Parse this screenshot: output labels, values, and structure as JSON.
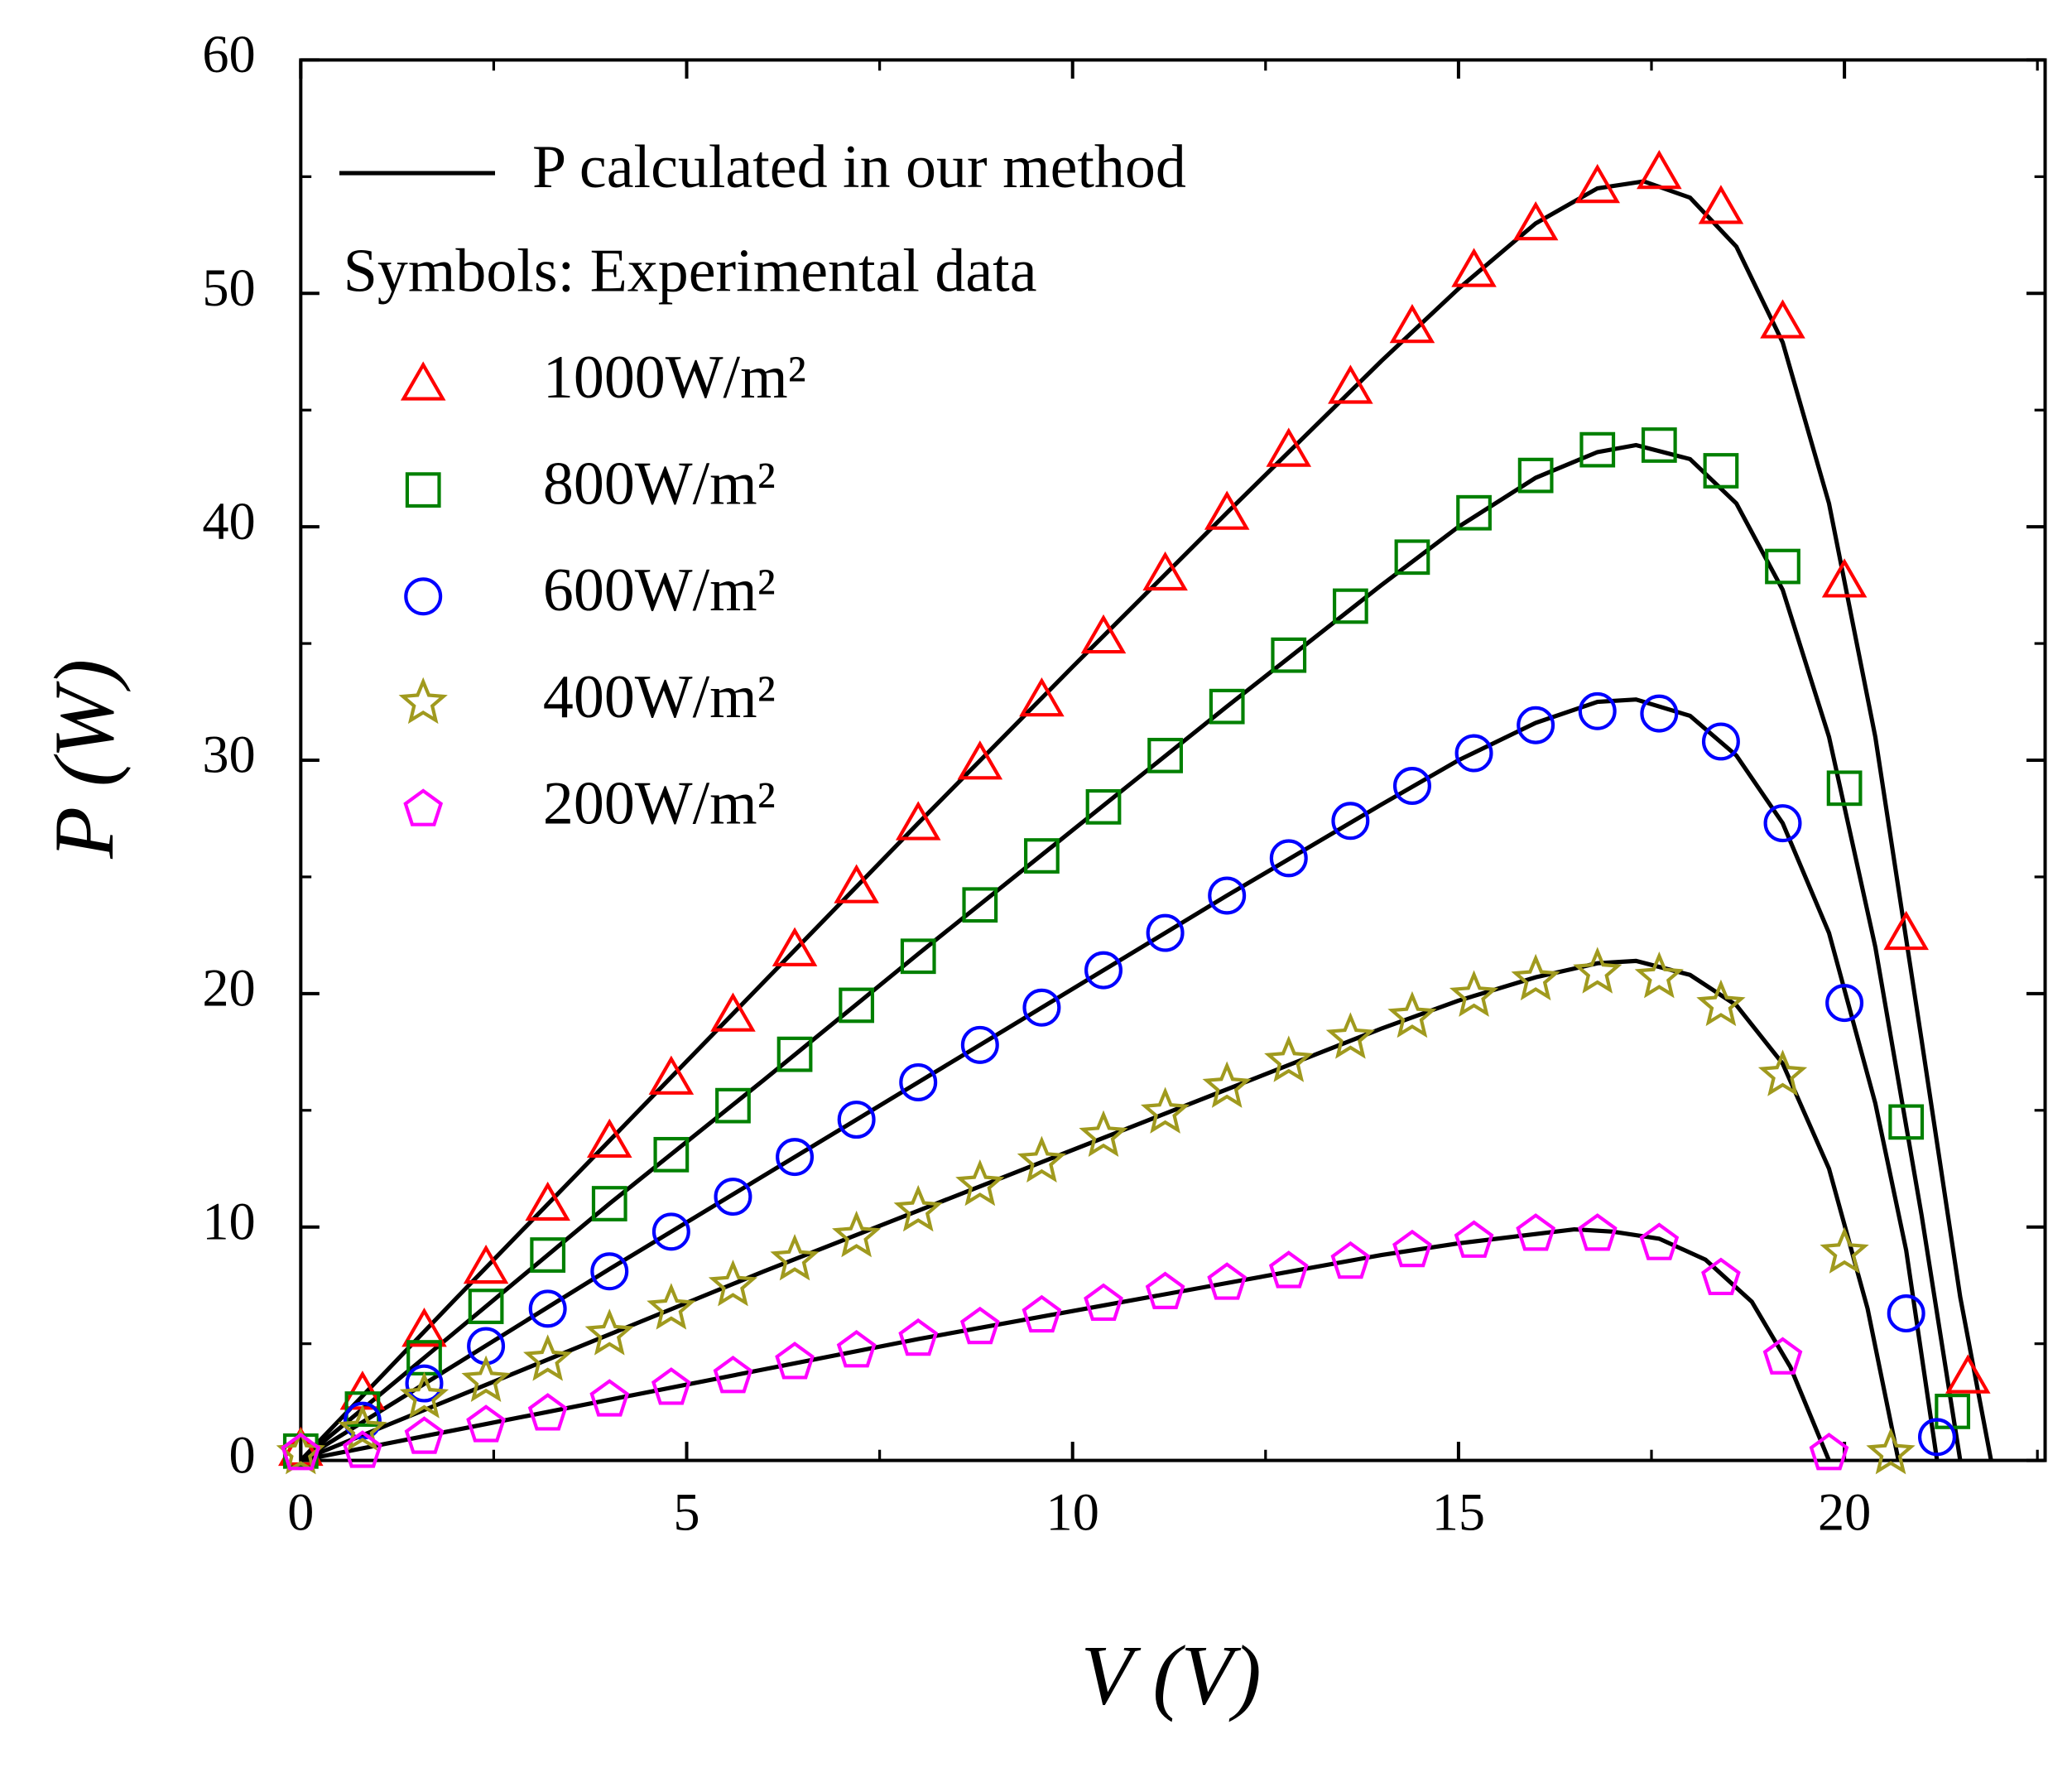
{
  "chart_data": {
    "type": "scatter",
    "x_label": "V (V)",
    "y_label": "P (W)",
    "xlim": [
      0,
      22.6
    ],
    "ylim": [
      0,
      60
    ],
    "xticks": [
      0,
      5,
      10,
      15,
      20
    ],
    "yticks": [
      0,
      10,
      20,
      30,
      40,
      50,
      60
    ],
    "xminorticks": [
      2.5,
      7.5,
      12.5,
      17.5,
      22.5
    ],
    "yminorticks": [
      5,
      15,
      25,
      35,
      45,
      55
    ],
    "legend_note": "Symbols: Experimental data",
    "fit": {
      "name": "P calculated in our method",
      "color": "#000000",
      "curves": [
        {
          "x": [
            0,
            2,
            4,
            6,
            8,
            10,
            12,
            14,
            15,
            16,
            16.8,
            17.4,
            18,
            18.6,
            19.2,
            19.8,
            20.4,
            21,
            21.5,
            21.9
          ],
          "values": [
            0,
            6.9,
            13.7,
            20.5,
            27.3,
            34.0,
            40.6,
            47.1,
            50.2,
            53.0,
            54.5,
            54.8,
            54.1,
            52.0,
            47.9,
            41.0,
            31.0,
            18.0,
            7.0,
            0
          ]
        },
        {
          "x": [
            0,
            2,
            4,
            6,
            8,
            10,
            12,
            14,
            15,
            16,
            16.8,
            17.3,
            18,
            18.6,
            19.2,
            19.8,
            20.4,
            21,
            21.5
          ],
          "values": [
            0,
            5.5,
            11.0,
            16.3,
            21.7,
            27.0,
            32.3,
            37.5,
            40.0,
            42.1,
            43.2,
            43.5,
            42.9,
            41.0,
            37.3,
            31.0,
            22.0,
            10.5,
            0
          ]
        },
        {
          "x": [
            0,
            2,
            4,
            6,
            8,
            10,
            12,
            14,
            15,
            16,
            16.8,
            17.3,
            18,
            18.6,
            19.2,
            19.8,
            20.4,
            20.8,
            21.2
          ],
          "values": [
            0,
            4.1,
            8.2,
            12.2,
            16.2,
            20.2,
            24.2,
            28.1,
            30.0,
            31.6,
            32.5,
            32.6,
            31.9,
            30.2,
            27.3,
            22.6,
            15.3,
            9.0,
            0
          ]
        },
        {
          "x": [
            0,
            2,
            4,
            6,
            8,
            10,
            12,
            14,
            15,
            16,
            16.8,
            17.3,
            18,
            18.6,
            19.2,
            19.8,
            20.3,
            20.7
          ],
          "values": [
            0,
            2.7,
            5.4,
            8.1,
            10.7,
            13.3,
            15.9,
            18.5,
            19.7,
            20.7,
            21.3,
            21.4,
            20.8,
            19.5,
            17.0,
            12.5,
            6.5,
            0
          ]
        },
        {
          "x": [
            0,
            2,
            4,
            6,
            8,
            10,
            12,
            14,
            15,
            16,
            16.5,
            17,
            17.6,
            18.2,
            18.8,
            19.3,
            19.8
          ],
          "values": [
            0,
            1.3,
            2.6,
            3.9,
            5.2,
            6.4,
            7.6,
            8.8,
            9.3,
            9.7,
            9.9,
            9.8,
            9.5,
            8.6,
            6.8,
            4.0,
            0
          ]
        }
      ]
    },
    "series": [
      {
        "name": "1000W/m²",
        "color": "#ff0000",
        "marker": "triangle",
        "x": [
          0,
          0.8,
          1.6,
          2.4,
          3.2,
          4.0,
          4.8,
          5.6,
          6.4,
          7.2,
          8.0,
          8.8,
          9.6,
          10.4,
          11.2,
          12.0,
          12.8,
          13.6,
          14.4,
          15.2,
          16.0,
          16.8,
          17.6,
          18.4,
          19.2,
          20.0,
          20.8,
          21.6
        ],
        "values": [
          0.5,
          2.9,
          5.6,
          8.3,
          11.0,
          13.7,
          16.4,
          19.1,
          21.9,
          24.6,
          27.3,
          29.9,
          32.6,
          35.3,
          38.0,
          40.6,
          43.3,
          46.0,
          48.6,
          51.0,
          53.0,
          54.6,
          55.2,
          53.7,
          48.8,
          37.7,
          22.6,
          3.6
        ]
      },
      {
        "name": "800W/m²",
        "color": "#008000",
        "marker": "square",
        "x": [
          0,
          0.8,
          1.6,
          2.4,
          3.2,
          4.0,
          4.8,
          5.6,
          6.4,
          7.2,
          8.0,
          8.8,
          9.6,
          10.4,
          11.2,
          12.0,
          12.8,
          13.6,
          14.4,
          15.2,
          16.0,
          16.8,
          17.6,
          18.4,
          19.2,
          20.0,
          20.8,
          21.4
        ],
        "values": [
          0.4,
          2.2,
          4.4,
          6.6,
          8.8,
          11.0,
          13.1,
          15.2,
          17.4,
          19.5,
          21.6,
          23.8,
          25.9,
          28.0,
          30.2,
          32.3,
          34.5,
          36.6,
          38.7,
          40.6,
          42.2,
          43.3,
          43.5,
          42.4,
          38.3,
          28.8,
          14.5,
          2.1
        ]
      },
      {
        "name": "600W/m²",
        "color": "#0000ff",
        "marker": "circle",
        "x": [
          0.8,
          1.6,
          2.4,
          3.2,
          4.0,
          4.8,
          5.6,
          6.4,
          7.2,
          8.0,
          8.8,
          9.6,
          10.4,
          11.2,
          12.0,
          12.8,
          13.6,
          14.4,
          15.2,
          16.0,
          16.8,
          17.6,
          18.4,
          19.2,
          20.0,
          20.8,
          21.2
        ],
        "values": [
          1.7,
          3.3,
          4.9,
          6.5,
          8.1,
          9.8,
          11.3,
          13.0,
          14.6,
          16.2,
          17.8,
          19.4,
          21.0,
          22.6,
          24.2,
          25.8,
          27.4,
          28.9,
          30.3,
          31.5,
          32.1,
          32.0,
          30.8,
          27.3,
          19.6,
          6.3,
          1.0
        ]
      },
      {
        "name": "400W/m²",
        "color": "#a09a1e",
        "marker": "star",
        "x": [
          0,
          0.8,
          1.6,
          2.4,
          3.2,
          4.0,
          4.8,
          5.6,
          6.4,
          7.2,
          8.0,
          8.8,
          9.6,
          10.4,
          11.2,
          12.0,
          12.8,
          13.6,
          14.4,
          15.2,
          16.0,
          16.8,
          17.6,
          18.4,
          19.2,
          20.0,
          20.6
        ],
        "values": [
          0.3,
          1.3,
          2.7,
          3.4,
          4.3,
          5.4,
          6.5,
          7.5,
          8.6,
          9.6,
          10.7,
          11.8,
          12.8,
          13.9,
          14.9,
          16.0,
          17.1,
          18.1,
          19.0,
          19.9,
          20.6,
          20.9,
          20.7,
          19.5,
          16.5,
          8.9,
          0.3
        ]
      },
      {
        "name": "200W/m²",
        "color": "#ff00ff",
        "marker": "pentagon",
        "x": [
          0,
          0.8,
          1.6,
          2.4,
          3.2,
          4.0,
          4.8,
          5.6,
          6.4,
          7.2,
          8.0,
          8.8,
          9.6,
          10.4,
          11.2,
          12.0,
          12.8,
          13.6,
          14.4,
          15.2,
          16.0,
          16.8,
          17.6,
          18.4,
          19.2,
          19.8
        ],
        "values": [
          0.3,
          0.4,
          1.0,
          1.5,
          2.0,
          2.6,
          3.1,
          3.6,
          4.2,
          4.7,
          5.2,
          5.7,
          6.2,
          6.7,
          7.2,
          7.6,
          8.1,
          8.5,
          9.0,
          9.4,
          9.7,
          9.7,
          9.3,
          7.8,
          4.4,
          0.3
        ]
      }
    ]
  }
}
